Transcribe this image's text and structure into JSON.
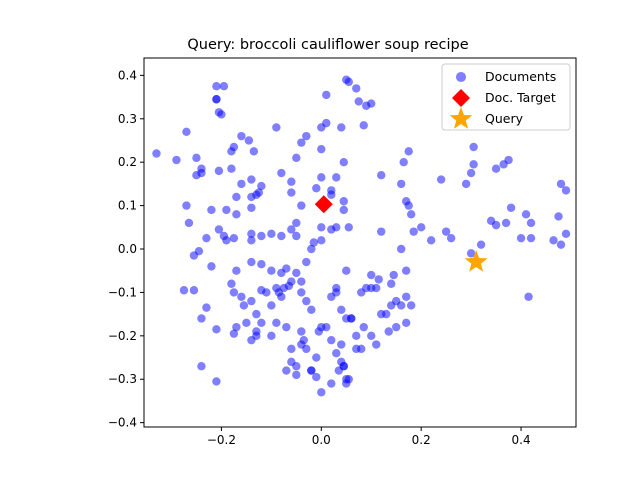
{
  "chart_data": {
    "type": "scatter",
    "title": "Query: broccoli cauliflower soup recipe",
    "xlabel": "",
    "ylabel": "",
    "xlim": [
      -0.355,
      0.51
    ],
    "ylim": [
      -0.41,
      0.44
    ],
    "x_ticks": [
      -0.2,
      0.0,
      0.2,
      0.4
    ],
    "x_tick_labels": [
      "−0.2",
      "0.0",
      "0.2",
      "0.4"
    ],
    "y_ticks": [
      -0.4,
      -0.3,
      -0.2,
      -0.1,
      0.0,
      0.1,
      0.2,
      0.3,
      0.4
    ],
    "y_tick_labels": [
      "−0.4",
      "−0.3",
      "−0.2",
      "−0.1",
      "0.0",
      "0.1",
      "0.2",
      "0.3",
      "0.4"
    ],
    "grid": false,
    "legend_position": "top-right",
    "series": [
      {
        "name": "Documents",
        "marker": "circle",
        "color": "#0000ff",
        "alpha": 0.5,
        "points": [
          [
            -0.33,
            0.22
          ],
          [
            -0.29,
            0.205
          ],
          [
            -0.27,
            0.27
          ],
          [
            -0.25,
            0.21
          ],
          [
            -0.25,
            0.17
          ],
          [
            -0.24,
            0.185
          ],
          [
            -0.24,
            0.175
          ],
          [
            -0.21,
            0.375
          ],
          [
            -0.195,
            0.375
          ],
          [
            -0.21,
            0.345
          ],
          [
            -0.21,
            0.345
          ],
          [
            -0.205,
            0.315
          ],
          [
            -0.2,
            0.31
          ],
          [
            -0.18,
            0.225
          ],
          [
            -0.175,
            0.235
          ],
          [
            -0.16,
            0.26
          ],
          [
            -0.145,
            0.25
          ],
          [
            -0.135,
            0.225
          ],
          [
            -0.205,
            0.18
          ],
          [
            -0.18,
            0.185
          ],
          [
            -0.16,
            0.15
          ],
          [
            -0.14,
            0.16
          ],
          [
            -0.12,
            0.145
          ],
          [
            -0.14,
            0.12
          ],
          [
            -0.13,
            0.125
          ],
          [
            -0.125,
            0.13
          ],
          [
            -0.17,
            0.12
          ],
          [
            -0.19,
            0.09
          ],
          [
            -0.17,
            0.08
          ],
          [
            -0.14,
            0.095
          ],
          [
            -0.22,
            0.09
          ],
          [
            -0.205,
            0.045
          ],
          [
            -0.195,
            0.03
          ],
          [
            -0.19,
            0.02
          ],
          [
            -0.175,
            0.025
          ],
          [
            -0.14,
            0.035
          ],
          [
            -0.14,
            0.02
          ],
          [
            -0.12,
            0.03
          ],
          [
            -0.1,
            0.035
          ],
          [
            -0.08,
            0.03
          ],
          [
            -0.06,
            0.045
          ],
          [
            -0.05,
            0.06
          ],
          [
            -0.04,
            0.1
          ],
          [
            -0.06,
            0.13
          ],
          [
            -0.08,
            0.175
          ],
          [
            -0.06,
            0.155
          ],
          [
            -0.05,
            0.21
          ],
          [
            -0.04,
            0.245
          ],
          [
            -0.03,
            0.26
          ],
          [
            -0.09,
            0.28
          ],
          [
            -0.27,
            0.1
          ],
          [
            -0.265,
            0.06
          ],
          [
            -0.23,
            0.025
          ],
          [
            -0.245,
            -0.005
          ],
          [
            -0.255,
            -0.015
          ],
          [
            -0.22,
            -0.04
          ],
          [
            -0.17,
            -0.05
          ],
          [
            -0.14,
            -0.03
          ],
          [
            -0.12,
            -0.035
          ],
          [
            -0.1,
            -0.05
          ],
          [
            -0.08,
            -0.055
          ],
          [
            -0.07,
            -0.045
          ],
          [
            -0.05,
            -0.055
          ],
          [
            -0.03,
            -0.03
          ],
          [
            -0.02,
            0.0
          ],
          [
            -0.015,
            0.015
          ],
          [
            0.0,
            0.02
          ],
          [
            0.02,
            0.045
          ],
          [
            0.0,
            0.05
          ],
          [
            -0.05,
            0.03
          ],
          [
            -0.04,
            -0.075
          ],
          [
            -0.06,
            -0.075
          ],
          [
            -0.065,
            -0.085
          ],
          [
            -0.09,
            -0.09
          ],
          [
            -0.085,
            -0.1
          ],
          [
            -0.075,
            -0.09
          ],
          [
            -0.08,
            -0.11
          ],
          [
            -0.1,
            -0.13
          ],
          [
            -0.11,
            -0.1
          ],
          [
            -0.12,
            -0.095
          ],
          [
            -0.14,
            -0.12
          ],
          [
            -0.155,
            -0.13
          ],
          [
            -0.13,
            -0.15
          ],
          [
            -0.16,
            -0.11
          ],
          [
            -0.18,
            -0.08
          ],
          [
            -0.175,
            -0.1
          ],
          [
            -0.15,
            -0.17
          ],
          [
            -0.17,
            -0.18
          ],
          [
            -0.175,
            -0.195
          ],
          [
            -0.12,
            -0.17
          ],
          [
            -0.13,
            -0.19
          ],
          [
            -0.14,
            -0.21
          ],
          [
            -0.13,
            -0.2
          ],
          [
            -0.1,
            -0.2
          ],
          [
            -0.09,
            -0.17
          ],
          [
            -0.07,
            -0.18
          ],
          [
            -0.06,
            -0.23
          ],
          [
            -0.04,
            -0.19
          ],
          [
            -0.06,
            -0.26
          ],
          [
            -0.07,
            -0.28
          ],
          [
            -0.05,
            -0.27
          ],
          [
            -0.05,
            -0.29
          ],
          [
            -0.04,
            -0.22
          ],
          [
            -0.035,
            -0.21
          ],
          [
            -0.03,
            -0.23
          ],
          [
            -0.02,
            -0.28
          ],
          [
            -0.02,
            -0.28
          ],
          [
            -0.01,
            -0.25
          ],
          [
            -0.01,
            -0.295
          ],
          [
            0.0,
            -0.33
          ],
          [
            0.02,
            -0.31
          ],
          [
            0.035,
            -0.28
          ],
          [
            0.04,
            -0.26
          ],
          [
            0.045,
            -0.27
          ],
          [
            0.05,
            -0.3
          ],
          [
            0.05,
            -0.31
          ],
          [
            0.045,
            -0.27
          ],
          [
            0.03,
            -0.24
          ],
          [
            0.02,
            -0.21
          ],
          [
            0.04,
            -0.22
          ],
          [
            0.01,
            -0.18
          ],
          [
            0.0,
            -0.18
          ],
          [
            -0.005,
            -0.19
          ],
          [
            -0.02,
            -0.14
          ],
          [
            -0.04,
            -0.1
          ],
          [
            -0.03,
            -0.12
          ],
          [
            0.02,
            -0.11
          ],
          [
            0.03,
            -0.09
          ],
          [
            0.03,
            -0.1
          ],
          [
            0.05,
            -0.05
          ],
          [
            0.04,
            -0.14
          ],
          [
            0.06,
            -0.16
          ],
          [
            0.06,
            -0.16
          ],
          [
            0.05,
            -0.16
          ],
          [
            0.07,
            -0.2
          ],
          [
            0.07,
            -0.23
          ],
          [
            0.085,
            -0.18
          ],
          [
            0.08,
            -0.23
          ],
          [
            0.1,
            -0.2
          ],
          [
            0.11,
            -0.22
          ],
          [
            0.12,
            -0.15
          ],
          [
            0.11,
            -0.09
          ],
          [
            0.13,
            -0.15
          ],
          [
            0.14,
            -0.13
          ],
          [
            0.135,
            -0.19
          ],
          [
            0.15,
            -0.18
          ],
          [
            0.15,
            -0.12
          ],
          [
            0.16,
            -0.13
          ],
          [
            0.17,
            -0.11
          ],
          [
            0.17,
            -0.17
          ],
          [
            0.18,
            -0.13
          ],
          [
            0.17,
            -0.05
          ],
          [
            0.145,
            -0.06
          ],
          [
            0.14,
            -0.08
          ],
          [
            0.115,
            -0.07
          ],
          [
            0.1,
            -0.09
          ],
          [
            0.09,
            -0.09
          ],
          [
            0.08,
            -0.1
          ],
          [
            0.1,
            -0.06
          ],
          [
            0.055,
            0.05
          ],
          [
            0.03,
            0.05
          ],
          [
            0.045,
            0.09
          ],
          [
            0.045,
            0.11
          ],
          [
            0.02,
            0.125
          ],
          [
            0.02,
            0.135
          ],
          [
            -0.01,
            0.14
          ],
          [
            0.0,
            0.165
          ],
          [
            0.03,
            0.165
          ],
          [
            0.045,
            0.2
          ],
          [
            0.0,
            0.23
          ],
          [
            0.0,
            0.28
          ],
          [
            0.01,
            0.29
          ],
          [
            0.01,
            0.355
          ],
          [
            0.04,
            0.28
          ],
          [
            0.055,
            0.385
          ],
          [
            0.05,
            0.39
          ],
          [
            0.07,
            0.37
          ],
          [
            0.075,
            0.34
          ],
          [
            0.09,
            0.33
          ],
          [
            0.1,
            0.335
          ],
          [
            0.085,
            0.285
          ],
          [
            0.12,
            0.17
          ],
          [
            0.12,
            0.04
          ],
          [
            0.16,
            0.0
          ],
          [
            0.185,
            0.04
          ],
          [
            0.2,
            0.05
          ],
          [
            0.18,
            0.08
          ],
          [
            0.17,
            0.11
          ],
          [
            0.175,
            0.1
          ],
          [
            0.16,
            0.15
          ],
          [
            0.165,
            0.2
          ],
          [
            0.175,
            0.225
          ],
          [
            0.22,
            0.02
          ],
          [
            0.24,
            0.16
          ],
          [
            0.25,
            0.04
          ],
          [
            0.26,
            0.025
          ],
          [
            0.29,
            0.15
          ],
          [
            0.3,
            0.175
          ],
          [
            0.305,
            0.195
          ],
          [
            0.305,
            0.235
          ],
          [
            0.3,
            -0.01
          ],
          [
            0.32,
            0.01
          ],
          [
            0.34,
            0.065
          ],
          [
            0.35,
            0.055
          ],
          [
            0.35,
            0.185
          ],
          [
            0.365,
            0.195
          ],
          [
            0.37,
            0.06
          ],
          [
            0.375,
            0.205
          ],
          [
            0.38,
            0.095
          ],
          [
            0.4,
            0.025
          ],
          [
            0.41,
            0.08
          ],
          [
            0.42,
            0.025
          ],
          [
            0.42,
            0.06
          ],
          [
            0.465,
            0.02
          ],
          [
            0.475,
            0.075
          ],
          [
            0.48,
            0.01
          ],
          [
            0.48,
            0.15
          ],
          [
            0.49,
            0.135
          ],
          [
            0.49,
            0.035
          ],
          [
            0.415,
            -0.11
          ],
          [
            -0.21,
            -0.305
          ],
          [
            -0.24,
            -0.27
          ],
          [
            -0.24,
            -0.16
          ],
          [
            -0.23,
            -0.135
          ],
          [
            -0.21,
            -0.185
          ],
          [
            -0.275,
            -0.095
          ],
          [
            -0.255,
            -0.095
          ],
          [
            0.055,
            -0.3
          ]
        ]
      },
      {
        "name": "Doc. Target",
        "marker": "diamond",
        "color": "#ff0000",
        "points": [
          [
            0.005,
            0.103
          ]
        ]
      },
      {
        "name": "Query",
        "marker": "star",
        "color": "#ffa500",
        "points": [
          [
            0.31,
            -0.03
          ]
        ]
      }
    ]
  }
}
